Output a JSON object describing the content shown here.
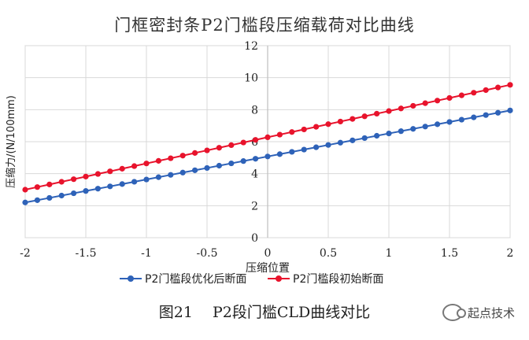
{
  "chart_data": {
    "type": "line",
    "title": "门框密封条P2门槛段压缩载荷对比曲线",
    "xlabel": "压缩位置",
    "ylabel": "压缩力/(N/100mm)",
    "xlim": [
      -2,
      2
    ],
    "ylim": [
      0,
      12
    ],
    "x_ticks": [
      "-2",
      "-1.5",
      "-1",
      "-0.5",
      "0",
      "0.5",
      "1",
      "1.5",
      "2"
    ],
    "y_ticks": [
      "0",
      "2",
      "4",
      "6",
      "8",
      "10",
      "12"
    ],
    "grid": "vertical-and-horizontal",
    "legend_position": "bottom",
    "series": [
      {
        "name": "P2门槛段优化后断面",
        "color": "#2e62b8",
        "x_start": -2,
        "x_end": 2,
        "y_start": 2.2,
        "y_end": 7.95,
        "points": 41
      },
      {
        "name": "P2门槛段初始断面",
        "color": "#e8132c",
        "x_start": -2,
        "x_end": 2,
        "y_start": 3.0,
        "y_end": 9.55,
        "points": 41
      }
    ]
  },
  "caption": "图21　 P2段门槛CLD曲线对比",
  "watermark": {
    "text": "起点技术",
    "icon": "wechat-icon"
  }
}
